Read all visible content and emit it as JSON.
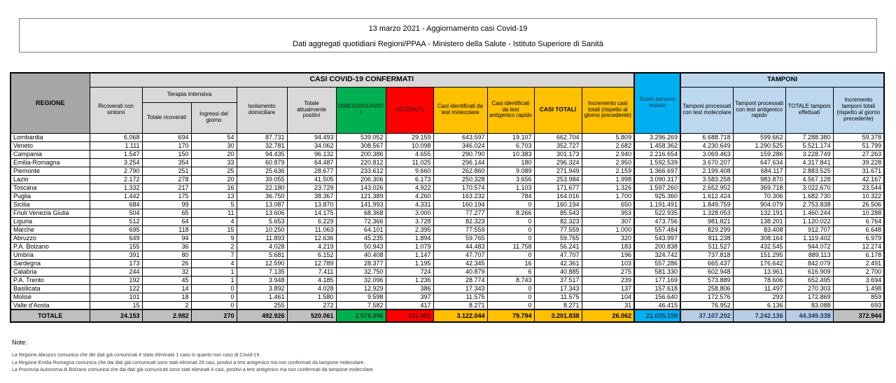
{
  "title": {
    "line1": "13 marzo 2021 - Aggiornamento casi Covid-19",
    "line2": "Dati aggregati quotidiani Regioni/PPAA - Ministero della Salute - Istituto Superiore di Sanità"
  },
  "table": {
    "group_headers": {
      "confermati": "CASI COVID-19 CONFERMATI",
      "tamponi": "TAMPONI",
      "terapia_intensiva": "Terapia intensiva"
    },
    "columns": [
      "REGIONE",
      "Ricoverati con sintomi",
      "Totale ricoverati",
      "Ingressi del giorno",
      "Isolamento domiciliare",
      "Totale attualmente positivi",
      "DIMESSI/GUARITI",
      "DECEDUTI",
      "Casi identificati da test molecolare",
      "Casi identificati da test antigenico rapido",
      "CASI TOTALI",
      "Incremento casi totali (rispetto al giorno precedente)",
      "Totale persone testate",
      "Tamponi processati con test molecolare",
      "Tamponi processati con test antigenico rapido",
      "TOTALE tamponi effettuati",
      "Incremento tamponi totali (rispetto al giorno precedente)"
    ],
    "rows": [
      {
        "region": "Lombardia",
        "values": [
          "6.068",
          "694",
          "54",
          "87.731",
          "94.493",
          "539.052",
          "29.159",
          "643.597",
          "19.107",
          "662.704",
          "5.809",
          "3.296.269",
          "6.688.718",
          "599.662",
          "7.288.380",
          "59.378"
        ]
      },
      {
        "region": "Veneto",
        "values": [
          "1.111",
          "170",
          "30",
          "32.781",
          "34.062",
          "308.567",
          "10.098",
          "346.024",
          "6.703",
          "352.727",
          "2.682",
          "1.458.362",
          "4.230.649",
          "1.290.525",
          "5.521.174",
          "51.799"
        ]
      },
      {
        "region": "Campania",
        "values": [
          "1.547",
          "150",
          "20",
          "94.435",
          "96.132",
          "200.386",
          "4.655",
          "290.790",
          "10.383",
          "301.173",
          "2.940",
          "2.216.654",
          "3.069.463",
          "159.286",
          "3.228.749",
          "27.263"
        ]
      },
      {
        "region": "Emilia-Romagna",
        "values": [
          "3.254",
          "354",
          "33",
          "60.879",
          "64.487",
          "220.812",
          "11.025",
          "296.144",
          "180",
          "296.324",
          "2.950",
          "1.592.539",
          "3.670.207",
          "647.634",
          "4.317.841",
          "39.228"
        ]
      },
      {
        "region": "Piemonte",
        "values": [
          "2.790",
          "251",
          "25",
          "25.636",
          "28.677",
          "233.612",
          "9.660",
          "262.860",
          "9.089",
          "271.949",
          "2.159",
          "1.366.697",
          "2.199.408",
          "684.117",
          "2.883.525",
          "31.671"
        ]
      },
      {
        "region": "Lazio",
        "values": [
          "2.172",
          "278",
          "20",
          "39.055",
          "41.505",
          "206.306",
          "6.173",
          "250.328",
          "3.656",
          "253.984",
          "1.998",
          "3.090.317",
          "3.583.258",
          "983.870",
          "4.567.128",
          "42.167"
        ]
      },
      {
        "region": "Toscana",
        "values": [
          "1.332",
          "217",
          "16",
          "22.180",
          "23.729",
          "143.026",
          "4.922",
          "170.574",
          "1.103",
          "171.677",
          "1.326",
          "1.597.260",
          "2.652.952",
          "369.718",
          "3.022.670",
          "23.544"
        ]
      },
      {
        "region": "Puglia",
        "values": [
          "1.442",
          "175",
          "13",
          "36.750",
          "38.367",
          "121.389",
          "4.260",
          "163.232",
          "784",
          "164.016",
          "1.700",
          "925.360",
          "1.612.424",
          "70.306",
          "1.682.730",
          "10.322"
        ]
      },
      {
        "region": "Sicilia",
        "values": [
          "684",
          "99",
          "5",
          "13.087",
          "13.870",
          "141.993",
          "4.331",
          "160.194",
          "0",
          "160.194",
          "650",
          "1.191.491",
          "1.849.759",
          "904.079",
          "2.753.838",
          "26.506"
        ]
      },
      {
        "region": "Friuli Venezia Giulia",
        "values": [
          "504",
          "65",
          "11",
          "13.606",
          "14.175",
          "68.368",
          "3.000",
          "77.277",
          "8.266",
          "85.543",
          "953",
          "522.935",
          "1.328.053",
          "132.191",
          "1.460.244",
          "10.288"
        ]
      },
      {
        "region": "Liguria",
        "values": [
          "512",
          "64",
          "4",
          "5.653",
          "6.229",
          "72.366",
          "3.728",
          "82.323",
          "0",
          "82.323",
          "307",
          "473.756",
          "981.821",
          "138.201",
          "1.120.022",
          "6.764"
        ]
      },
      {
        "region": "Marche",
        "values": [
          "695",
          "118",
          "15",
          "10.250",
          "11.063",
          "64.101",
          "2.395",
          "77.559",
          "0",
          "77.559",
          "1.000",
          "557.484",
          "829.299",
          "83.408",
          "912.707",
          "6.648"
        ]
      },
      {
        "region": "Abruzzo",
        "values": [
          "649",
          "94",
          "9",
          "11.893",
          "12.636",
          "45.235",
          "1.894",
          "59.765",
          "0",
          "59.765",
          "320",
          "543.997",
          "811.238",
          "308.164",
          "1.119.402",
          "6.979"
        ]
      },
      {
        "region": "P.A. Bolzano",
        "values": [
          "155",
          "36",
          "2",
          "4.028",
          "4.219",
          "50.943",
          "1.079",
          "44.483",
          "11.758",
          "56.241",
          "183",
          "200.838",
          "511.527",
          "432.545",
          "944.072",
          "12.274"
        ]
      },
      {
        "region": "Umbria",
        "values": [
          "391",
          "80",
          "7",
          "5.681",
          "6.152",
          "40.408",
          "1.147",
          "47.707",
          "0",
          "47.707",
          "196",
          "324.742",
          "737.818",
          "151.295",
          "889.113",
          "6.178"
        ]
      },
      {
        "region": "Sardegna",
        "values": [
          "173",
          "26",
          "4",
          "12.590",
          "12.789",
          "28.377",
          "1.195",
          "42.345",
          "16",
          "42.361",
          "103",
          "557.286",
          "665.437",
          "176.642",
          "842.079",
          "2.491"
        ]
      },
      {
        "region": "Calabria",
        "values": [
          "244",
          "32",
          "1",
          "7.135",
          "7.411",
          "32.750",
          "724",
          "40.879",
          "6",
          "40.885",
          "275",
          "581.330",
          "602.948",
          "13.961",
          "616.909",
          "2.700"
        ]
      },
      {
        "region": "P.A. Trento",
        "values": [
          "192",
          "45",
          "1",
          "3.948",
          "4.185",
          "32.096",
          "1.236",
          "28.774",
          "8.743",
          "37.517",
          "239",
          "177.169",
          "573.889",
          "78.606",
          "652.495",
          "3.694"
        ]
      },
      {
        "region": "Basilicata",
        "values": [
          "122",
          "14",
          "0",
          "3.892",
          "4.028",
          "12.929",
          "386",
          "17.343",
          "0",
          "17.343",
          "137",
          "157.618",
          "258.806",
          "11.497",
          "270.303",
          "1.498"
        ]
      },
      {
        "region": "Molise",
        "values": [
          "101",
          "18",
          "0",
          "1.461",
          "1.580",
          "9.598",
          "397",
          "11.575",
          "0",
          "11.575",
          "104",
          "156.640",
          "172.576",
          "293",
          "172.869",
          "859"
        ]
      },
      {
        "region": "Valle d'Aosta",
        "values": [
          "15",
          "2",
          "0",
          "255",
          "272",
          "7.582",
          "417",
          "8.271",
          "0",
          "8.271",
          "31",
          "46.415",
          "76.952",
          "6.136",
          "83.088",
          "693"
        ]
      }
    ],
    "total": {
      "label": "TOTALE",
      "values": [
        "24.153",
        "2.982",
        "270",
        "492.926",
        "520.061",
        "2.579.896",
        "101.881",
        "3.122.044",
        "79.794",
        "3.201.838",
        "26.062",
        "21.035.159",
        "37.107.202",
        "7.242.136",
        "44.349.338",
        "372.944"
      ]
    }
  },
  "notes": {
    "title": "Note:",
    "lines": [
      "La Regione Abruzzo comunica che dei dati già comunicati è stato eliminato 1 caso in quanto non caso di Covid-19.",
      "La Regione Emilia Romagna comunica che dai dati già comunicati sono stati eliminati 26 casi, positivi a test antigenico ma non confermati da tampone molecolare.",
      "La Provincia Autonoma di Bolzano comunica che dai dati già comunicati sono stati eliminati 4 casi, positivi a test antigenico ma non confermati da tampone molecolare."
    ]
  },
  "colors": {
    "green_recovered": "#00b050",
    "red_deceased": "#ff0000",
    "yellow_cases": "#ffc000",
    "cyan_tested": "#00b0f0",
    "lightblue_swabs": "#bdd7ee",
    "grey_header": "#a6a6a6",
    "grey_total_row": "#bfbfbf"
  }
}
